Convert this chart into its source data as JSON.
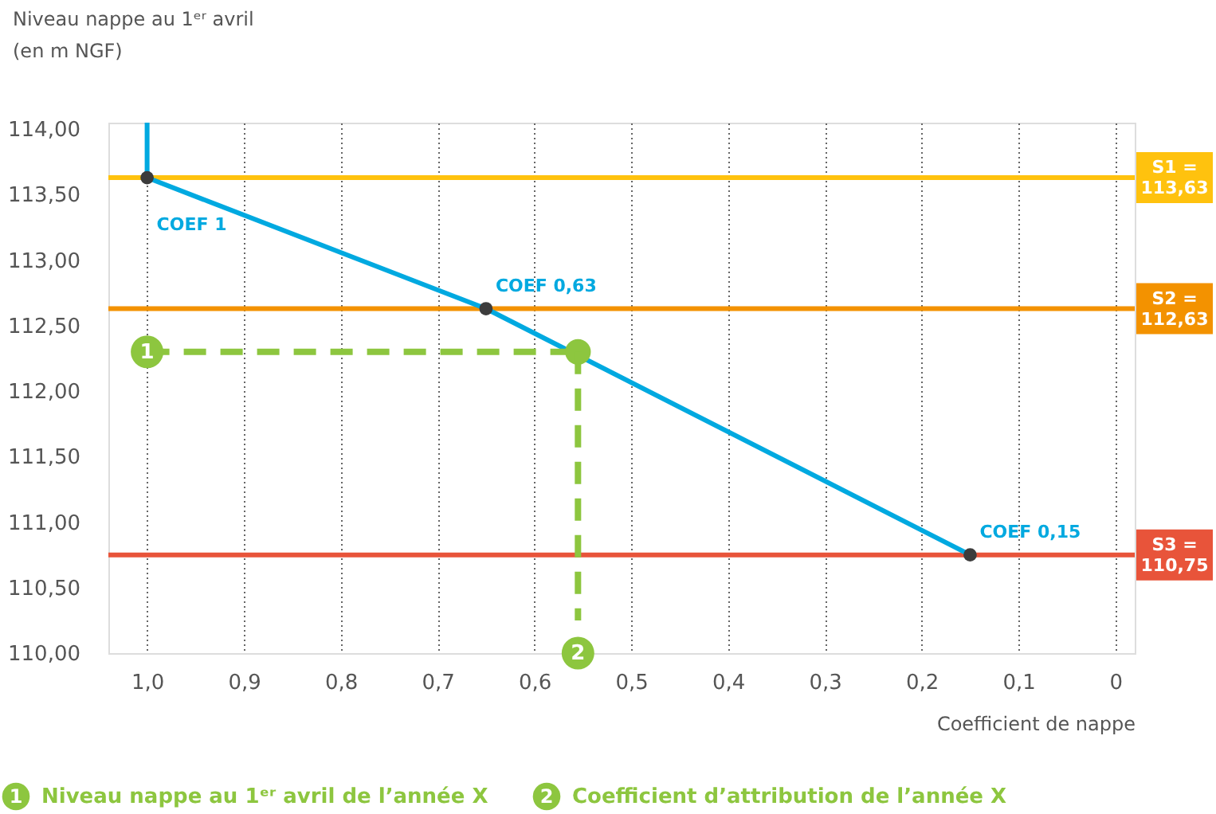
{
  "chart_data": {
    "type": "line",
    "xlabel": "Coefficient de nappe",
    "ylabel": "Niveau nappe au 1ᵉʳ avril\n(en m NGF)",
    "xlim": [
      1.04,
      -0.02
    ],
    "ylim": [
      110,
      114.05
    ],
    "xticks": [
      {
        "value": 1.0,
        "label": "1,0"
      },
      {
        "value": 0.9,
        "label": "0,9"
      },
      {
        "value": 0.8,
        "label": "0,8"
      },
      {
        "value": 0.7,
        "label": "0,7"
      },
      {
        "value": 0.6,
        "label": "0,6"
      },
      {
        "value": 0.5,
        "label": "0,5"
      },
      {
        "value": 0.4,
        "label": "0,4"
      },
      {
        "value": 0.3,
        "label": "0,3"
      },
      {
        "value": 0.2,
        "label": "0,2"
      },
      {
        "value": 0.1,
        "label": "0,1"
      },
      0
    ],
    "yticks": [
      {
        "value": 110,
        "label": "110,00"
      },
      {
        "value": 110.5,
        "label": "110,50"
      },
      {
        "value": 111,
        "label": "111,00"
      },
      {
        "value": 111.5,
        "label": "111,50"
      },
      {
        "value": 112,
        "label": "112,00"
      },
      {
        "value": 112.5,
        "label": "112,50"
      },
      {
        "value": 113,
        "label": "113,00"
      },
      {
        "value": 113.5,
        "label": "113,50"
      },
      {
        "value": 114,
        "label": "114,00"
      }
    ],
    "grid": "x",
    "series": [
      {
        "color": "#00a9e0",
        "x": [
          1.0,
          1.0,
          0.65,
          0.15
        ],
        "values": [
          114.05,
          113.63,
          112.63,
          110.75
        ],
        "marker": "none",
        "line_style": "solid"
      },
      {
        "color": "#8dc63f",
        "x": [
          1.0,
          0.555
        ],
        "values": [
          112.3,
          112.3
        ],
        "marker": "circle",
        "line_style": "dashed"
      },
      {
        "color": "#8dc63f",
        "x": [
          0.555,
          0.555
        ],
        "values": [
          112.3,
          110.25
        ],
        "marker": "none",
        "line_style": "dashed"
      },
      {
        "type": "scatter",
        "color": "#3c3c3c",
        "x": [
          1.0,
          0.65,
          0.15
        ],
        "values": [
          113.63,
          112.63,
          110.75
        ],
        "marker": "circle"
      }
    ],
    "ref_lines": [
      {
        "axis": "y",
        "value": 113.63,
        "label": "S1 = 113,63",
        "color": "#ffc20e"
      },
      {
        "axis": "y",
        "value": 112.63,
        "label": "S2 = 112,63",
        "color": "#f39200"
      },
      {
        "axis": "y",
        "value": 110.75,
        "label": "S3 = 110,75",
        "color": "#e8543a"
      }
    ],
    "annotations": [
      {
        "text": "COEF 1",
        "x": 1.0,
        "y": 113.63
      },
      {
        "text": "COEF 0,63",
        "x": 0.65,
        "y": 112.63
      },
      {
        "text": "COEF 0,15",
        "x": 0.15,
        "y": 110.75
      },
      {
        "text": "1",
        "x": 1.0,
        "y": 112.3
      },
      {
        "text": "2",
        "x": 0.555,
        "y": 110.0
      },
      "1 Niveau nappe au 1ᵉʳ avril de l’année X",
      "2 Coefficient d’attribution de l’année X"
    ]
  }
}
